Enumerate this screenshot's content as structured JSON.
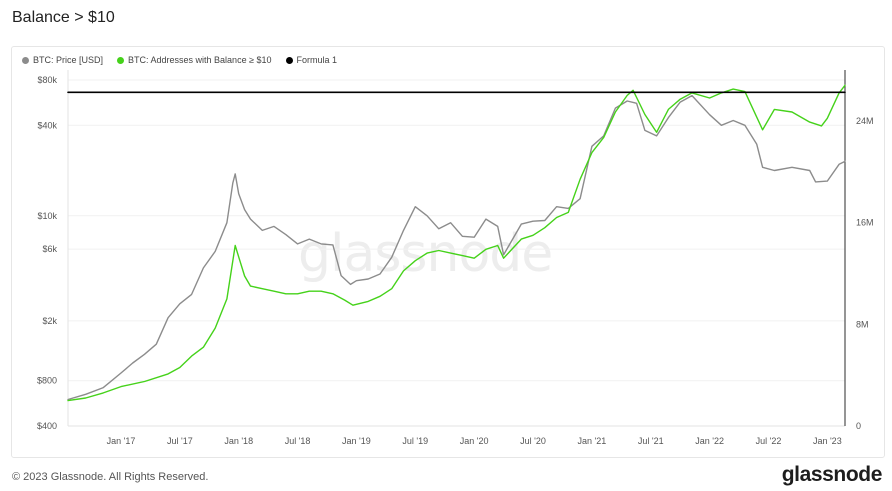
{
  "page": {
    "title": "Balance > $10",
    "copyright": "© 2023 Glassnode. All Rights Reserved.",
    "brand": "glassnode",
    "watermark": "glassnode"
  },
  "legend": [
    {
      "label": "BTC: Price [USD]",
      "color": "#8c8c8c"
    },
    {
      "label": "BTC: Addresses with Balance ≥ $10",
      "color": "#45d21a"
    },
    {
      "label": "Formula 1",
      "color": "#000000"
    }
  ],
  "chart_data": {
    "type": "line",
    "title": "Balance > $10",
    "x_ticks": [
      "Jan '17",
      "Jul '17",
      "Jan '18",
      "Jul '18",
      "Jan '19",
      "Jul '19",
      "Jan '20",
      "Jul '20",
      "Jan '21",
      "Jul '21",
      "Jan '22",
      "Jul '22",
      "Jan '23"
    ],
    "x_range": [
      2016.55,
      2023.15
    ],
    "y_left": {
      "scale": "log",
      "range": [
        400,
        80000
      ],
      "ticks": [
        {
          "v": 80000,
          "label": "$80k"
        },
        {
          "v": 40000,
          "label": "$40k"
        },
        {
          "v": 10000,
          "label": "$10k"
        },
        {
          "v": 6000,
          "label": "$6k"
        },
        {
          "v": 2000,
          "label": "$2k"
        },
        {
          "v": 800,
          "label": "$800"
        },
        {
          "v": 400,
          "label": "$400"
        }
      ]
    },
    "y_right": {
      "scale": "linear",
      "range": [
        0,
        28000000
      ],
      "ticks": [
        {
          "v": 0,
          "label": "0"
        },
        {
          "v": 8000000,
          "label": "8M"
        },
        {
          "v": 16000000,
          "label": "16M"
        },
        {
          "v": 24000000,
          "label": "24M"
        }
      ]
    },
    "series": [
      {
        "name": "BTC: Price [USD]",
        "axis": "left",
        "color": "#8c8c8c",
        "x": [
          2016.55,
          2016.7,
          2016.85,
          2017.0,
          2017.1,
          2017.2,
          2017.3,
          2017.4,
          2017.5,
          2017.6,
          2017.7,
          2017.8,
          2017.9,
          2017.95,
          2017.97,
          2018.0,
          2018.05,
          2018.1,
          2018.2,
          2018.3,
          2018.4,
          2018.5,
          2018.6,
          2018.7,
          2018.8,
          2018.87,
          2018.95,
          2019.0,
          2019.1,
          2019.2,
          2019.3,
          2019.4,
          2019.5,
          2019.6,
          2019.7,
          2019.8,
          2019.9,
          2020.0,
          2020.1,
          2020.2,
          2020.25,
          2020.4,
          2020.5,
          2020.6,
          2020.7,
          2020.8,
          2020.9,
          2021.0,
          2021.1,
          2021.2,
          2021.3,
          2021.38,
          2021.45,
          2021.55,
          2021.65,
          2021.75,
          2021.85,
          2022.0,
          2022.1,
          2022.2,
          2022.3,
          2022.4,
          2022.45,
          2022.55,
          2022.7,
          2022.85,
          2022.9,
          2023.0,
          2023.1,
          2023.15
        ],
        "values": [
          600,
          650,
          720,
          900,
          1050,
          1200,
          1400,
          2100,
          2600,
          3000,
          4500,
          5800,
          9000,
          16500,
          19000,
          14000,
          11000,
          9500,
          8000,
          8500,
          7500,
          6500,
          7000,
          6500,
          6400,
          4000,
          3500,
          3700,
          3800,
          4100,
          5300,
          8000,
          11500,
          10000,
          8200,
          9000,
          7300,
          7200,
          9500,
          8500,
          5500,
          8800,
          9200,
          9300,
          11500,
          11200,
          13000,
          29000,
          34000,
          52000,
          58000,
          56000,
          37000,
          34000,
          45000,
          57000,
          63000,
          47000,
          40000,
          43000,
          40000,
          30000,
          21000,
          20000,
          21000,
          20000,
          16800,
          17000,
          22000,
          23000
        ]
      },
      {
        "name": "BTC: Addresses with Balance ≥ $10",
        "axis": "right",
        "color": "#45d21a",
        "x": [
          2016.55,
          2016.7,
          2016.85,
          2017.0,
          2017.2,
          2017.4,
          2017.5,
          2017.6,
          2017.7,
          2017.8,
          2017.9,
          2017.97,
          2018.0,
          2018.05,
          2018.1,
          2018.2,
          2018.3,
          2018.4,
          2018.5,
          2018.6,
          2018.7,
          2018.8,
          2018.9,
          2018.97,
          2019.1,
          2019.2,
          2019.3,
          2019.4,
          2019.5,
          2019.6,
          2019.7,
          2019.8,
          2019.9,
          2020.0,
          2020.1,
          2020.2,
          2020.25,
          2020.4,
          2020.5,
          2020.6,
          2020.7,
          2020.8,
          2020.9,
          2021.0,
          2021.1,
          2021.2,
          2021.3,
          2021.35,
          2021.45,
          2021.55,
          2021.65,
          2021.75,
          2021.85,
          2022.0,
          2022.1,
          2022.2,
          2022.3,
          2022.45,
          2022.55,
          2022.7,
          2022.85,
          2022.95,
          2023.0,
          2023.1,
          2023.15
        ],
        "values": [
          2000000,
          2200000,
          2600000,
          3100000,
          3500000,
          4100000,
          4600000,
          5500000,
          6200000,
          7700000,
          10000000,
          14200000,
          13300000,
          11800000,
          11000000,
          10800000,
          10600000,
          10400000,
          10400000,
          10600000,
          10600000,
          10400000,
          9900000,
          9500000,
          9800000,
          10200000,
          10800000,
          12200000,
          13000000,
          13600000,
          13800000,
          13600000,
          13400000,
          13200000,
          13900000,
          14200000,
          13200000,
          14700000,
          15000000,
          15600000,
          16400000,
          16800000,
          19400000,
          21500000,
          22700000,
          24700000,
          26000000,
          26400000,
          24500000,
          23100000,
          24900000,
          25700000,
          26200000,
          25800000,
          26200000,
          26500000,
          26300000,
          23300000,
          24900000,
          24700000,
          23900000,
          23600000,
          24200000,
          26200000,
          26800000
        ]
      },
      {
        "name": "Formula 1",
        "axis": "right",
        "color": "#000000",
        "x": [
          2016.55,
          2023.15
        ],
        "values": [
          26250000,
          26250000
        ]
      }
    ]
  }
}
